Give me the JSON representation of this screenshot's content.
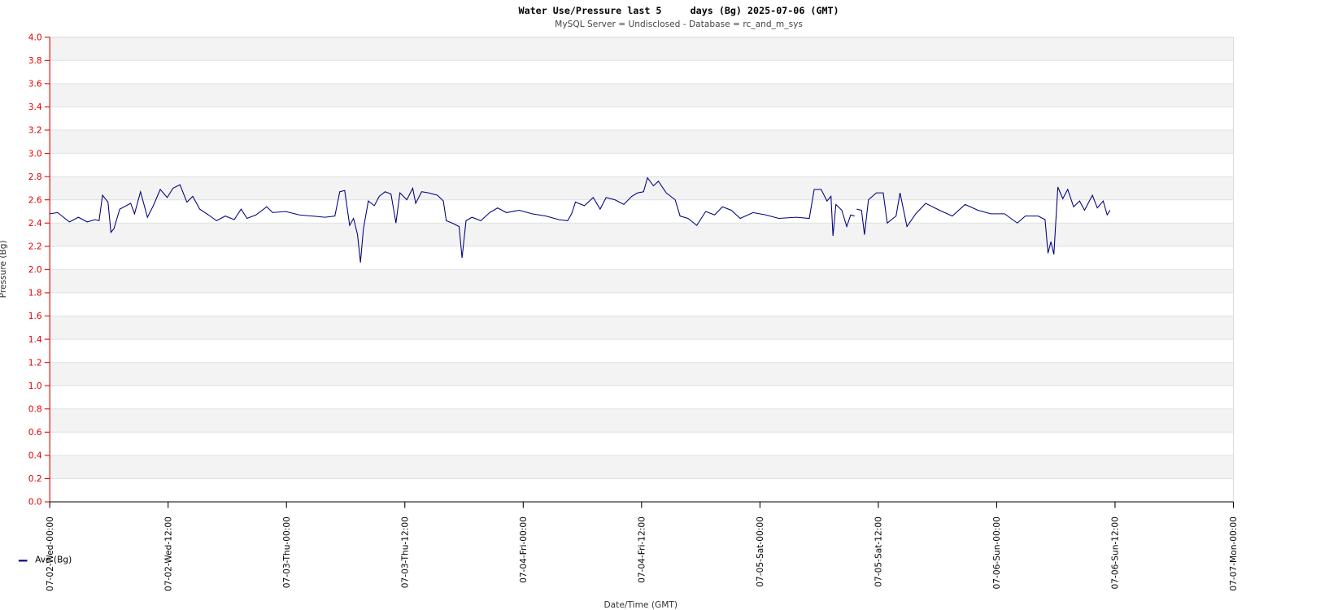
{
  "chart_data": {
    "type": "line",
    "title": "Water Use/Pressure last 5     days (Bg) 2025-07-06 (GMT)",
    "subtitle": "MySQL Server = Undisclosed - Database = rc_and_m_sys",
    "x_label": "Date/Time (GMT)",
    "y_label": "Pressure (Bg)",
    "xlim": [
      0,
      120
    ],
    "xticks": [
      {
        "value": 0,
        "label": "07-02-Wed-00:00"
      },
      {
        "value": 12,
        "label": "07-02-Wed-12:00"
      },
      {
        "value": 24,
        "label": "07-03-Thu-00:00"
      },
      {
        "value": 36,
        "label": "07-03-Thu-12:00"
      },
      {
        "value": 48,
        "label": "07-04-Fri-00:00"
      },
      {
        "value": 60,
        "label": "07-04-Fri-12:00"
      },
      {
        "value": 72,
        "label": "07-05-Sat-00:00"
      },
      {
        "value": 84,
        "label": "07-05-Sat-12:00"
      },
      {
        "value": 96,
        "label": "07-06-Sun-00:00"
      },
      {
        "value": 108,
        "label": "07-06-Sun-12:00"
      },
      {
        "value": 120,
        "label": "07-07-Mon-00:00"
      }
    ],
    "ylim": [
      0,
      4
    ],
    "yticks": [
      {
        "value": 0,
        "label": "0.0"
      },
      {
        "value": 0.2,
        "label": "0.2"
      },
      {
        "value": 0.4,
        "label": "0.4"
      },
      {
        "value": 0.6,
        "label": "0.6"
      },
      {
        "value": 0.8,
        "label": "0.8"
      },
      {
        "value": 1,
        "label": "1.0"
      },
      {
        "value": 1.2,
        "label": "1.2"
      },
      {
        "value": 1.4,
        "label": "1.4"
      },
      {
        "value": 1.6,
        "label": "1.6"
      },
      {
        "value": 1.8,
        "label": "1.8"
      },
      {
        "value": 2,
        "label": "2.0"
      },
      {
        "value": 2.2,
        "label": "2.2"
      },
      {
        "value": 2.4,
        "label": "2.4"
      },
      {
        "value": 2.6,
        "label": "2.6"
      },
      {
        "value": 2.8,
        "label": "2.8"
      },
      {
        "value": 3,
        "label": "3.0"
      },
      {
        "value": 3.2,
        "label": "3.2"
      },
      {
        "value": 3.4,
        "label": "3.4"
      },
      {
        "value": 3.6,
        "label": "3.6"
      },
      {
        "value": 3.8,
        "label": "3.8"
      },
      {
        "value": 4,
        "label": "4.0"
      }
    ],
    "grid": true,
    "legend": "bottom-left",
    "x": [
      0,
      0.8,
      2,
      2.9,
      3.8,
      4.6,
      5,
      5.35,
      5.9,
      6.2,
      6.5,
      7.1,
      8.2,
      8.6,
      9.2,
      9.9,
      10.5,
      11.2,
      11.9,
      12.5,
      13.2,
      13.9,
      14.5,
      15.2,
      16.1,
      16.9,
      17.8,
      18.7,
      19.4,
      20,
      20.9,
      22,
      22.6,
      23.9,
      25.3,
      26.6,
      27.9,
      28.9,
      29.4,
      29.9,
      30.4,
      30.8,
      31.2,
      31.5,
      31.8,
      32.3,
      32.9,
      33.4,
      34,
      34.6,
      35.1,
      35.5,
      36.2,
      36.8,
      37.1,
      37.7,
      38.4,
      39.3,
      39.9,
      40.2,
      40.8,
      41.5,
      41.8,
      42.2,
      42.8,
      43.7,
      44.6,
      45.4,
      46.3,
      47.6,
      48.9,
      50.3,
      51.6,
      52.5,
      52.9,
      53.3,
      54.2,
      55.1,
      55.8,
      56.4,
      57.3,
      58.2,
      59,
      59.6,
      60.2,
      60.6,
      61.2,
      61.7,
      62.5,
      63.4,
      63.9,
      64.7,
      65.6,
      66.5,
      67.4,
      68.2,
      69.1,
      70,
      71.3,
      72.6,
      73.9,
      75.7,
      77,
      77.5,
      78.2,
      78.8,
      79.2,
      79.4,
      79.7,
      80.3,
      80.8,
      81.2,
      81.6,
      81.7,
      81.8,
      82.3,
      82.6,
      83,
      83.8,
      84.5,
      84.9,
      85.8,
      86.2,
      86.9,
      87.8,
      88.8,
      90.2,
      91.5,
      92.8,
      94.1,
      95.4,
      96.8,
      98.1,
      98.9,
      100.2,
      100.9,
      101.2,
      101.5,
      101.8,
      102.2,
      102.7,
      103.2,
      103.8,
      104.4,
      104.9,
      105.7,
      106.2,
      106.8,
      107.2,
      107.5
    ],
    "series": [
      {
        "name": "Ave (Bg)",
        "color": "#000080",
        "values": [
          2.48,
          2.49,
          2.41,
          2.45,
          2.41,
          2.43,
          2.42,
          2.64,
          2.58,
          2.32,
          2.35,
          2.52,
          2.57,
          2.48,
          2.67,
          2.45,
          2.55,
          2.69,
          2.62,
          2.7,
          2.73,
          2.58,
          2.63,
          2.52,
          2.47,
          2.42,
          2.46,
          2.43,
          2.52,
          2.44,
          2.47,
          2.54,
          2.49,
          2.5,
          2.47,
          2.46,
          2.45,
          2.46,
          2.67,
          2.68,
          2.38,
          2.44,
          2.3,
          2.06,
          2.35,
          2.59,
          2.55,
          2.63,
          2.67,
          2.65,
          2.4,
          2.66,
          2.6,
          2.7,
          2.57,
          2.67,
          2.66,
          2.64,
          2.59,
          2.42,
          2.4,
          2.37,
          2.1,
          2.42,
          2.45,
          2.42,
          2.49,
          2.53,
          2.49,
          2.51,
          2.48,
          2.46,
          2.43,
          2.42,
          2.48,
          2.58,
          2.55,
          2.62,
          2.52,
          2.62,
          2.6,
          2.56,
          2.63,
          2.66,
          2.67,
          2.79,
          2.72,
          2.76,
          2.66,
          2.6,
          2.46,
          2.44,
          2.38,
          2.5,
          2.47,
          2.54,
          2.51,
          2.44,
          2.49,
          2.47,
          2.44,
          2.45,
          2.44,
          2.69,
          2.69,
          2.59,
          2.63,
          2.29,
          2.56,
          2.51,
          2.37,
          2.47,
          2.46,
          null,
          2.52,
          2.51,
          2.3,
          2.6,
          2.66,
          2.66,
          2.4,
          2.46,
          2.66,
          2.37,
          2.48,
          2.57,
          2.51,
          2.46,
          2.56,
          2.51,
          2.48,
          2.48,
          2.4,
          2.46,
          2.46,
          2.43,
          2.14,
          2.24,
          2.13,
          2.71,
          2.61,
          2.69,
          2.54,
          2.59,
          2.51,
          2.64,
          2.53,
          2.59,
          2.47,
          2.51
        ]
      }
    ]
  }
}
